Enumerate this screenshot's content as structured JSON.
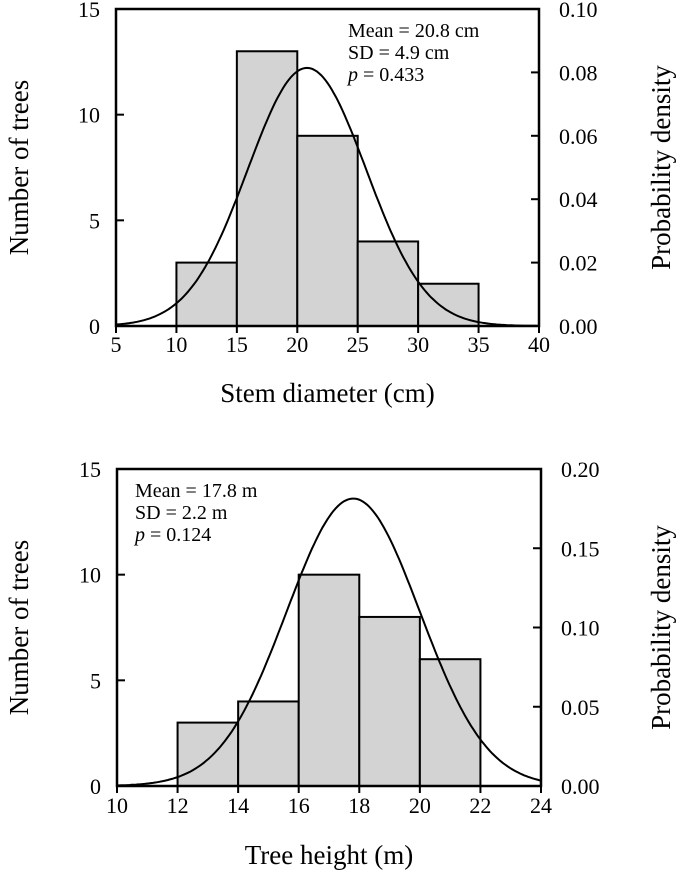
{
  "chart_data": [
    {
      "type": "bar",
      "xlabel": "Stem diameter (cm)",
      "ylabel": "Number of trees",
      "y2label": "Probability density",
      "xlim": [
        5,
        40
      ],
      "ylim": [
        0,
        15
      ],
      "y2lim": [
        0,
        0.1
      ],
      "xticks": [
        "5",
        "10",
        "15",
        "20",
        "25",
        "30",
        "35",
        "40"
      ],
      "yticks": [
        "0",
        "5",
        "10",
        "15"
      ],
      "y2ticks": [
        "0.00",
        "0.02",
        "0.04",
        "0.06",
        "0.08",
        "0.10"
      ],
      "bins": [
        [
          10,
          15
        ],
        [
          15,
          20
        ],
        [
          20,
          25
        ],
        [
          25,
          30
        ],
        [
          30,
          35
        ]
      ],
      "values": [
        3,
        13,
        9,
        4,
        2
      ],
      "normal_curve": {
        "mean": 20.8,
        "sd": 4.9
      },
      "annotations": [
        "Mean = 20.8 cm",
        "SD = 4.9 cm",
        "0.433"
      ],
      "annotation_p_symbol": "p",
      "annotation_p_eq": " = ",
      "annotation_position": "top-right",
      "bar_color": "#d3d3d3"
    },
    {
      "type": "bar",
      "xlabel": "Tree height (m)",
      "ylabel": "Number of trees",
      "y2label": "Probability density",
      "xlim": [
        10,
        24
      ],
      "ylim": [
        0,
        15
      ],
      "y2lim": [
        0,
        0.2
      ],
      "xticks": [
        "10",
        "12",
        "14",
        "16",
        "18",
        "20",
        "22",
        "24"
      ],
      "yticks": [
        "0",
        "5",
        "10",
        "15"
      ],
      "y2ticks": [
        "0.00",
        "0.05",
        "0.10",
        "0.15",
        "0.20"
      ],
      "bins": [
        [
          12,
          14
        ],
        [
          14,
          16
        ],
        [
          16,
          18
        ],
        [
          18,
          20
        ],
        [
          20,
          22
        ]
      ],
      "values": [
        3,
        4,
        10,
        8,
        6
      ],
      "normal_curve": {
        "mean": 17.8,
        "sd": 2.2
      },
      "annotations": [
        "Mean = 17.8 m",
        "SD = 2.2 m",
        "0.124"
      ],
      "annotation_p_symbol": "p",
      "annotation_p_eq": " = ",
      "annotation_position": "top-left",
      "bar_color": "#d3d3d3"
    }
  ]
}
